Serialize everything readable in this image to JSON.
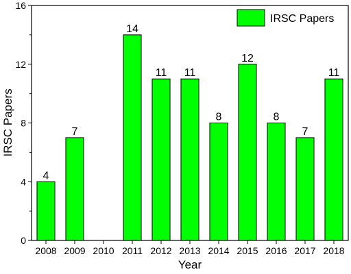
{
  "chart_data": {
    "type": "bar",
    "categories": [
      "2008",
      "2009",
      "2010",
      "2011",
      "2012",
      "2013",
      "2014",
      "2015",
      "2016",
      "2017",
      "2018"
    ],
    "series": [
      {
        "name": "IRSC Papers",
        "values": [
          4,
          7,
          0,
          14,
          11,
          11,
          8,
          12,
          8,
          7,
          11
        ],
        "data_labels": [
          "4",
          "7",
          "",
          "14",
          "11",
          "11",
          "8",
          "12",
          "8",
          "7",
          "11"
        ],
        "color": "#00ff00"
      }
    ],
    "xlabel": "Year",
    "ylabel": "IRSC Papers",
    "ylim": [
      0,
      16
    ],
    "yticks": [
      0,
      4,
      8,
      12,
      16
    ],
    "grid": false,
    "legend": {
      "placement": "top-right",
      "label": "IRSC Papers"
    }
  }
}
